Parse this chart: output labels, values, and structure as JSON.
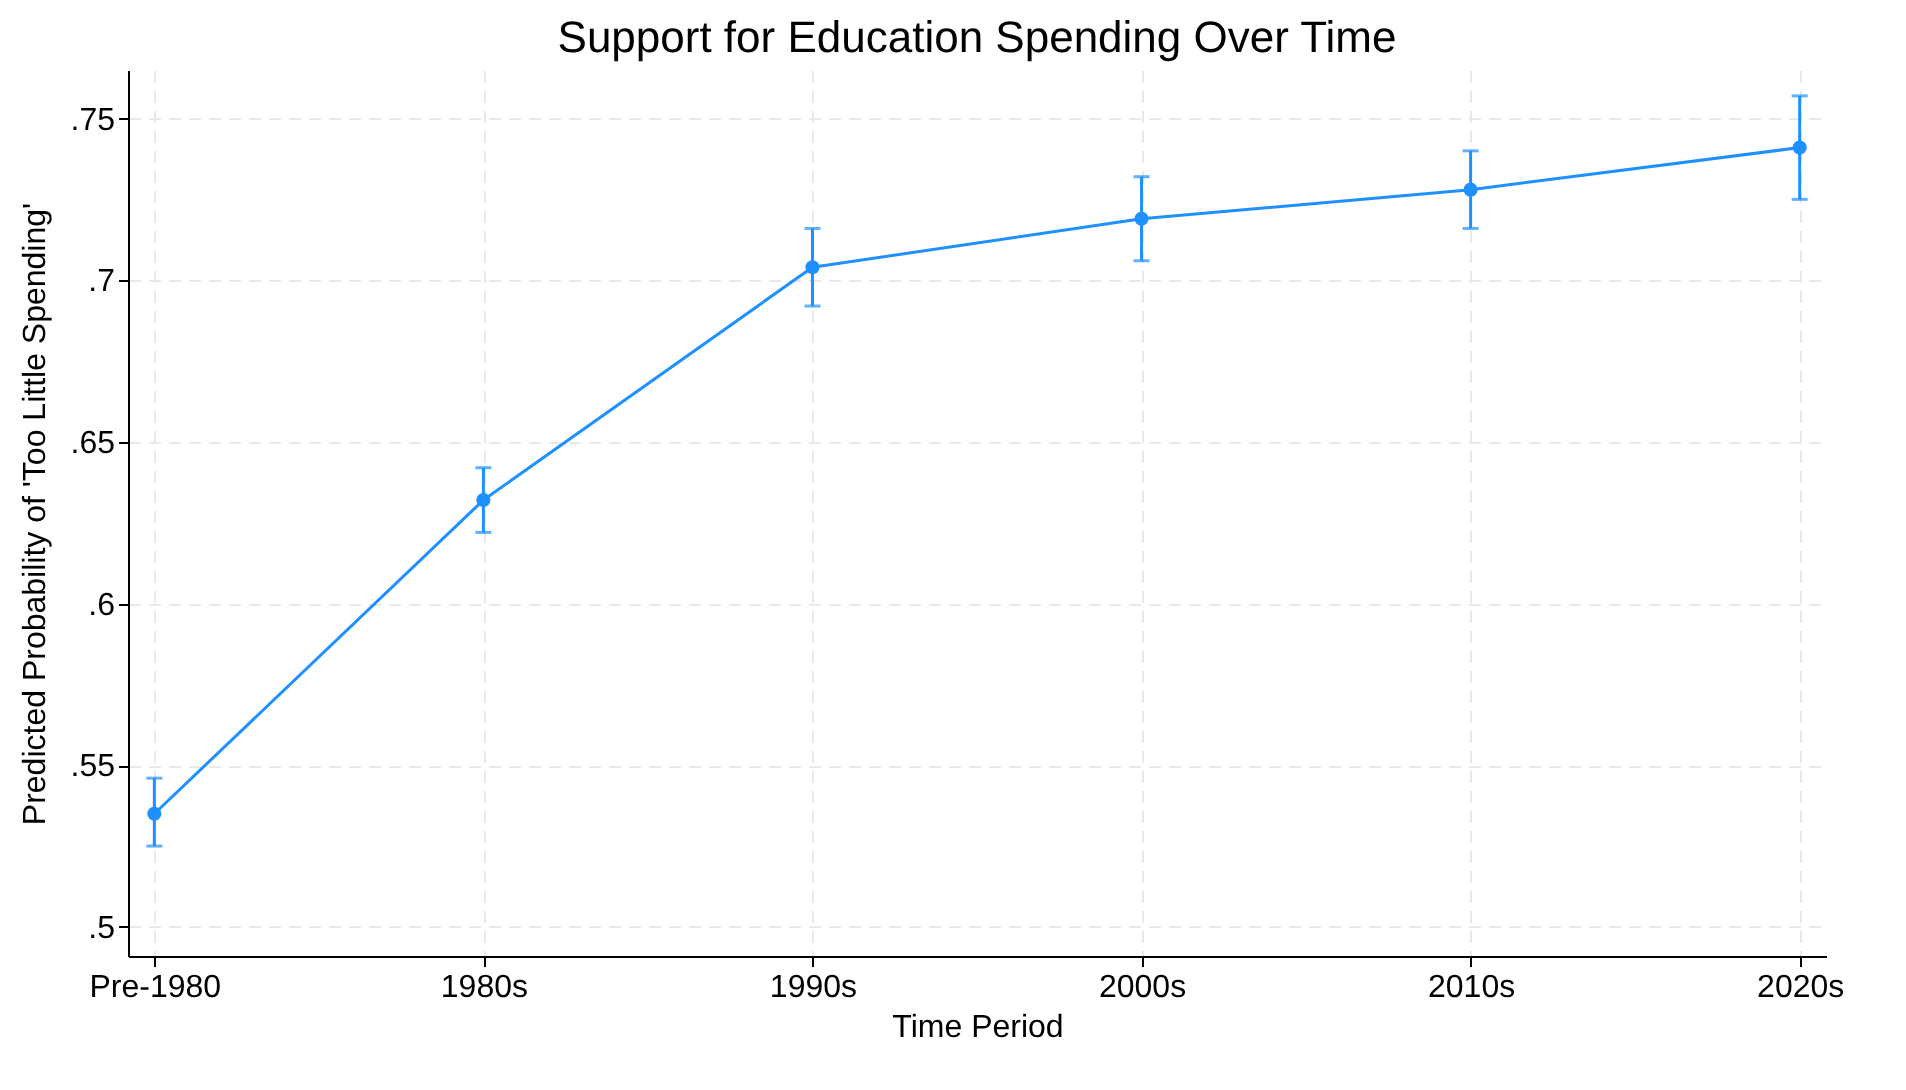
{
  "chart_data": {
    "type": "line",
    "title": "Support for Education Spending Over Time",
    "xlabel": "Time Period",
    "ylabel": "Predicted Probability of 'Too Little Spending'",
    "categories": [
      "Pre-1980",
      "1980s",
      "1990s",
      "2000s",
      "2010s",
      "2020s"
    ],
    "series": [
      {
        "color": "#1e90ff",
        "values": [
          0.535,
          0.632,
          0.704,
          0.719,
          0.728,
          0.741
        ],
        "errors": [
          [
            0.525,
            0.546
          ],
          [
            0.622,
            0.642
          ],
          [
            0.692,
            0.716
          ],
          [
            0.706,
            0.732
          ],
          [
            0.716,
            0.74
          ],
          [
            0.725,
            0.757
          ]
        ]
      }
    ],
    "ylim": [
      0.491,
      0.765
    ],
    "yticks": [
      {
        "value": 0.5,
        "label": ".5"
      },
      {
        "value": 0.55,
        "label": ".55"
      },
      {
        "value": 0.6,
        "label": ".6"
      },
      {
        "value": 0.65,
        "label": ".65"
      },
      {
        "value": 0.7,
        "label": ".7"
      },
      {
        "value": 0.75,
        "label": ".75"
      }
    ],
    "grid": true,
    "marker": "circle",
    "line_style": "solid"
  }
}
